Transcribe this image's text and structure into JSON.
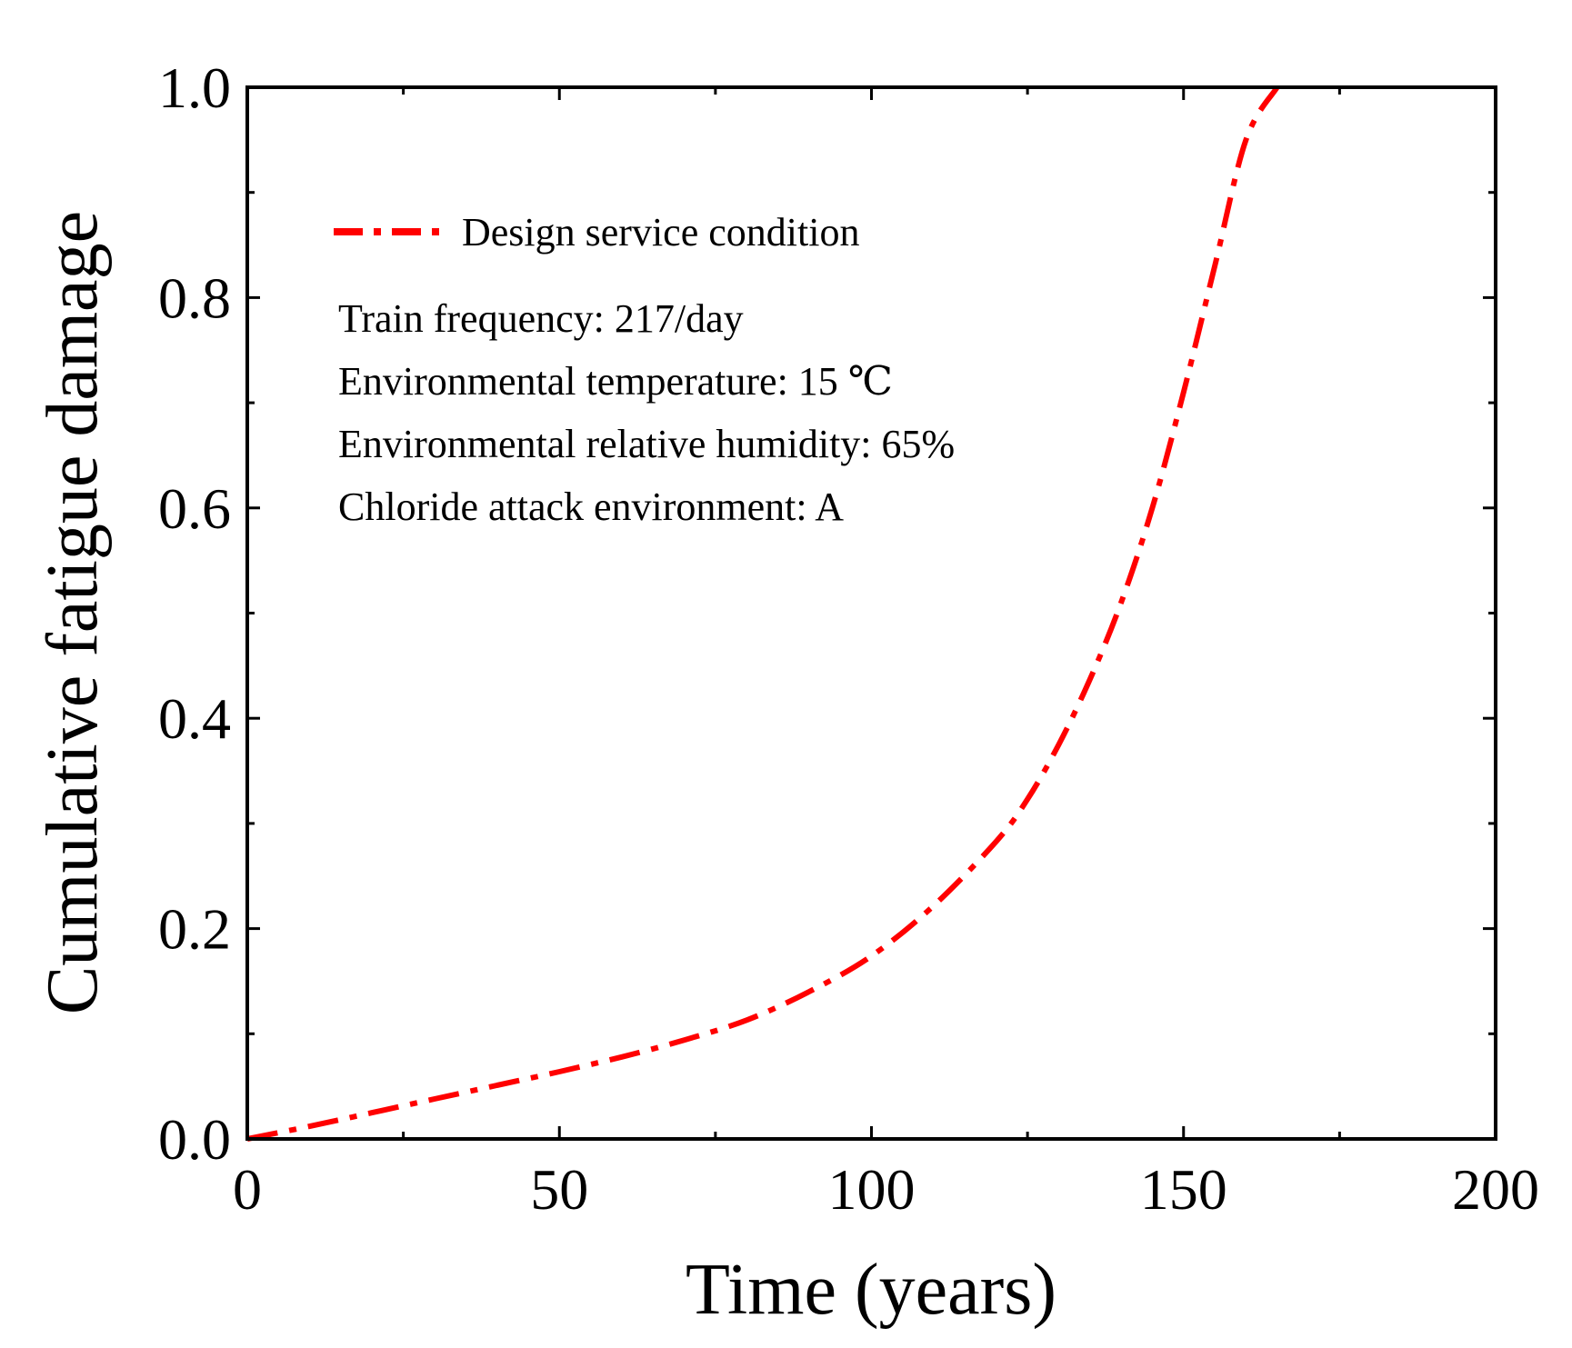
{
  "chart_data": {
    "type": "line",
    "xlabel": "Time (years)",
    "ylabel": "Cumulative fatigue damage",
    "xlim": [
      0,
      200
    ],
    "ylim": [
      0,
      1.0
    ],
    "x_ticks": [
      0,
      50,
      100,
      150,
      200
    ],
    "x_tick_labels": [
      "0",
      "50",
      "100",
      "150",
      "200"
    ],
    "x_minor_ticks": [
      25,
      75,
      125,
      175
    ],
    "y_ticks": [
      0.0,
      0.2,
      0.4,
      0.6,
      0.8,
      1.0
    ],
    "y_tick_labels": [
      "0.0",
      "0.2",
      "0.4",
      "0.6",
      "0.8",
      "1.0"
    ],
    "y_minor_ticks": [
      0.1,
      0.3,
      0.5,
      0.7,
      0.9
    ],
    "grid": false,
    "legend_position": "top-left",
    "series": [
      {
        "name": "Design service condition",
        "color": "#ff0000",
        "line_style": "dash-dot",
        "x": [
          0,
          10,
          20,
          30,
          40,
          50,
          60,
          70,
          80,
          90,
          100,
          110,
          120,
          125,
          130,
          135,
          140,
          145,
          150,
          155,
          160,
          165
        ],
        "y": [
          0.0,
          0.012,
          0.025,
          0.038,
          0.051,
          0.064,
          0.078,
          0.094,
          0.113,
          0.14,
          0.174,
          0.222,
          0.283,
          0.323,
          0.375,
          0.437,
          0.51,
          0.6,
          0.71,
          0.83,
          0.95,
          1.0
        ]
      }
    ],
    "annotations": [
      "Train frequency: 217/day",
      "Environmental temperature: 15 ℃",
      "Environmental relative humidity: 65%",
      "Chloride attack environment: A"
    ]
  }
}
